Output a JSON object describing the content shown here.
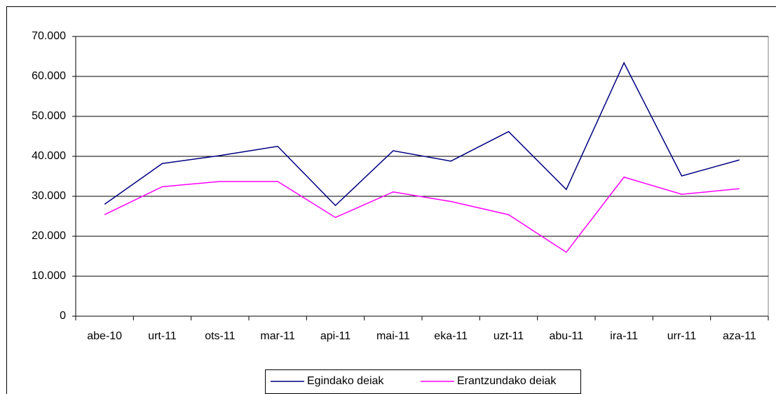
{
  "chart_data": {
    "type": "line",
    "categories": [
      "abe-10",
      "urt-11",
      "ots-11",
      "mar-11",
      "api-11",
      "mai-11",
      "eka-11",
      "uzt-11",
      "abu-11",
      "ira-11",
      "urr-11",
      "aza-11"
    ],
    "series": [
      {
        "name": "Egindako deiak",
        "color": "#000080",
        "values": [
          28000,
          38200,
          40200,
          42500,
          27700,
          41400,
          38800,
          46200,
          31700,
          63400,
          35100,
          39100
        ]
      },
      {
        "name": "Erantzundako deiak",
        "color": "#ff00ff",
        "values": [
          25400,
          32400,
          33700,
          33700,
          24700,
          31100,
          28700,
          25400,
          16000,
          34800,
          30500,
          31900
        ]
      }
    ],
    "ylim": [
      0,
      70000
    ],
    "yticks": [
      0,
      {
        "value": 10000,
        "label": "10.000"
      },
      {
        "value": 20000,
        "label": "20.000"
      },
      {
        "value": 30000,
        "label": "30.000"
      },
      {
        "value": 40000,
        "label": "40.000"
      },
      {
        "value": 50000,
        "label": "50.000"
      },
      {
        "value": 60000,
        "label": "60.000"
      },
      {
        "value": 70000,
        "label": "70.000"
      }
    ],
    "grid": true,
    "legend": "bottom"
  }
}
